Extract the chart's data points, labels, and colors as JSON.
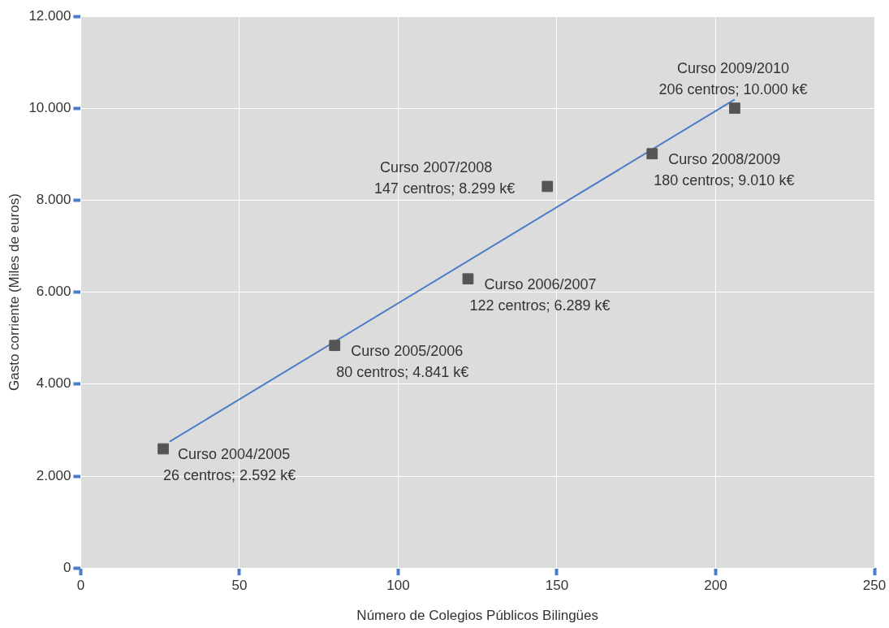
{
  "chart_data": {
    "type": "scatter",
    "xlabel": "Número de Colegios Públicos Bilingües",
    "ylabel": "Gasto corriente (Miles de euros)",
    "series": [
      {
        "type": "scatter",
        "color": "#555555",
        "x": [
          26,
          80,
          122,
          147,
          180,
          206
        ],
        "values": [
          2592,
          4841,
          6289,
          8299,
          9010,
          10000
        ],
        "marker": "square"
      },
      {
        "type": "line",
        "color": "#4a7cc7",
        "x": [
          28,
          206
        ],
        "values": [
          2750,
          10190
        ],
        "marker": "none",
        "line_style": "solid"
      }
    ],
    "xlim": [
      0,
      250
    ],
    "xticks": [
      0,
      50,
      100,
      150,
      200,
      250
    ],
    "ylim": [
      0,
      12000
    ],
    "yticks": [
      0,
      {
        "value": 2000,
        "label": "2.000"
      },
      {
        "value": 4000,
        "label": "4.000"
      },
      {
        "value": 6000,
        "label": "6.000"
      },
      {
        "value": 8000,
        "label": "8.000"
      },
      {
        "value": 10000,
        "label": "10.000"
      },
      {
        "value": 12000,
        "label": "12.000"
      }
    ],
    "grid": true,
    "legend": false,
    "annotations": [
      {
        "text": "Curso 2004/2005\n26 centros; 2.592 k€",
        "x": 26,
        "y": 2592
      },
      {
        "text": "Curso 2005/2006\n80 centros; 4.841 k€",
        "x": 80,
        "y": 4841
      },
      {
        "text": "Curso 2006/2007\n122 centros; 6.289 k€",
        "x": 122,
        "y": 6289
      },
      {
        "text": "Curso 2007/2008\n147 centros; 8.299 k€",
        "x": 147,
        "y": 8299
      },
      {
        "text": "Curso 2008/2009\n180 centros; 9.010 k€",
        "x": 180,
        "y": 9010
      },
      {
        "text": "Curso 2009/2010\n206 centros; 10.000 k€",
        "x": 206,
        "y": 10000
      }
    ]
  }
}
